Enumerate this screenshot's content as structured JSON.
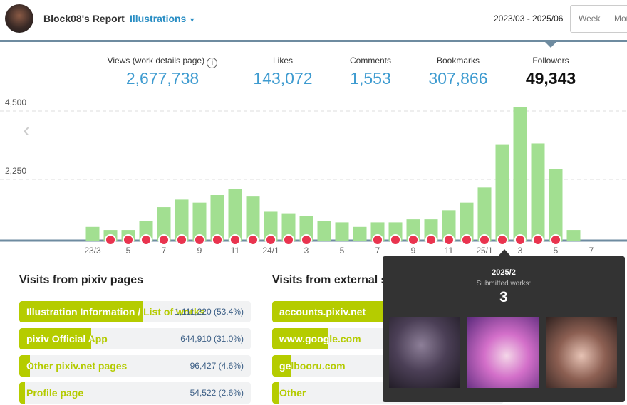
{
  "header": {
    "title": "Block08's Report",
    "category": "Illustrations",
    "date_range": "2023/03 - 2025/06",
    "tabs": [
      "Week",
      "Month"
    ]
  },
  "stats": [
    {
      "label": "Views (work details page)",
      "value": "2,677,738"
    },
    {
      "label": "Likes",
      "value": "143,072"
    },
    {
      "label": "Comments",
      "value": "1,553"
    },
    {
      "label": "Bookmarks",
      "value": "307,866"
    },
    {
      "label": "Followers",
      "value": "49,343"
    }
  ],
  "chart_data": {
    "type": "bar",
    "color": "#a2df91",
    "marker_color": "#e9344f",
    "categories": [
      "23/3",
      null,
      "5",
      null,
      "7",
      null,
      "9",
      null,
      "11",
      null,
      "24/1",
      null,
      "3",
      null,
      "5",
      null,
      "7",
      null,
      "9",
      null,
      "11",
      null,
      "25/1",
      null,
      "3",
      null,
      "5",
      null,
      "7"
    ],
    "values": [
      450,
      350,
      350,
      650,
      1100,
      1350,
      1250,
      1500,
      1700,
      1450,
      950,
      900,
      800,
      650,
      600,
      450,
      600,
      600,
      700,
      700,
      1000,
      1250,
      1750,
      3150,
      4400,
      3200,
      2350,
      350,
      null
    ],
    "markers": [
      false,
      true,
      true,
      true,
      true,
      true,
      true,
      true,
      true,
      true,
      true,
      true,
      true,
      false,
      false,
      false,
      true,
      true,
      true,
      true,
      true,
      true,
      true,
      true,
      true,
      true,
      true,
      false,
      false
    ],
    "ylim": [
      0,
      4500
    ],
    "yticks": [
      {
        "value": 2250,
        "label": "2,250"
      },
      {
        "value": 4500,
        "label": "4,500"
      }
    ],
    "grid": true,
    "tooltip": {
      "category_index": 23,
      "title": "2025/2",
      "label": "Submitted works:",
      "value": 3
    }
  },
  "pixiv_pages": {
    "title": "Visits from pixiv pages",
    "rows": [
      {
        "label": "Illustration Information / List of works",
        "value": "1,111,220 (53.4%)",
        "share": 53.4
      },
      {
        "label": "pixiv Official App",
        "value": "644,910 (31.0%)",
        "share": 31.0
      },
      {
        "label": "Other pixiv.net pages",
        "value": "96,427 (4.6%)",
        "share": 4.6
      },
      {
        "label": "Profile page",
        "value": "54,522 (2.6%)",
        "share": 2.6
      }
    ]
  },
  "external": {
    "title": "Visits from external sites",
    "rows": [
      {
        "label": "accounts.pixiv.net",
        "share": 48
      },
      {
        "label": "www.google.com",
        "share": 24
      },
      {
        "label": "gelbooru.com",
        "share": 8
      },
      {
        "label": "Other",
        "share": 3
      }
    ]
  }
}
